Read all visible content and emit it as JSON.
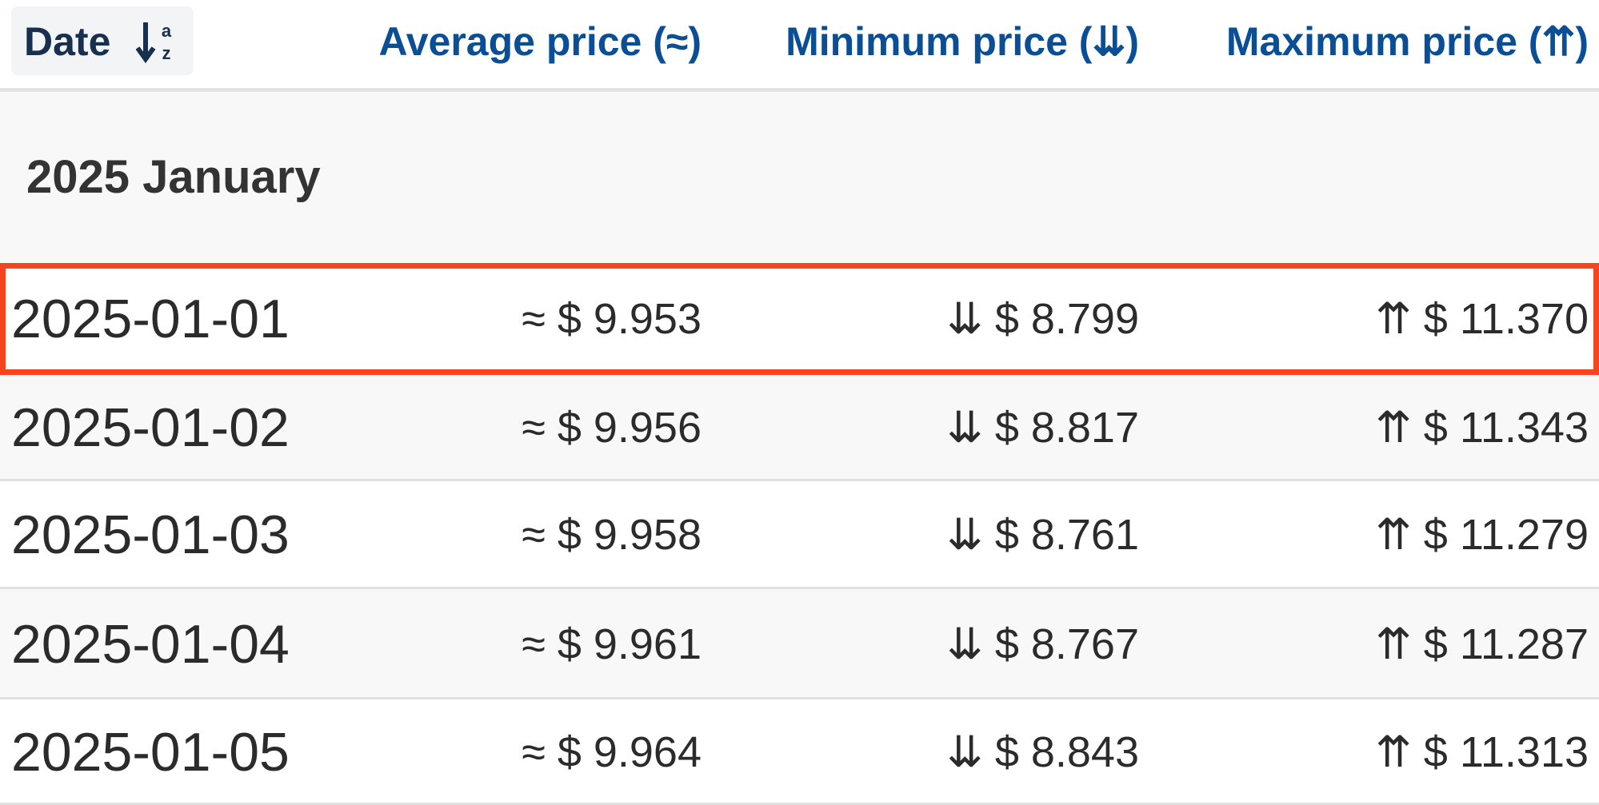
{
  "header": {
    "columns": [
      "Date",
      "Average price (≈)",
      "Minimum price (⇊)",
      "Maximum price (⇈)"
    ]
  },
  "group": {
    "label": "2025 January"
  },
  "table": {
    "rows": [
      [
        "2025-01-01",
        "≈ $ 9.953",
        "⇊ $ 8.799",
        "⇈ $ 11.370"
      ],
      [
        "2025-01-02",
        "≈ $ 9.956",
        "⇊ $ 8.817",
        "⇈ $ 11.343"
      ],
      [
        "2025-01-03",
        "≈ $ 9.958",
        "⇊ $ 8.761",
        "⇈ $ 11.279"
      ],
      [
        "2025-01-04",
        "≈ $ 9.961",
        "⇊ $ 8.767",
        "⇈ $ 11.287"
      ],
      [
        "2025-01-05",
        "≈ $ 9.964",
        "⇊ $ 8.843",
        "⇈ $ 11.313"
      ]
    ]
  }
}
